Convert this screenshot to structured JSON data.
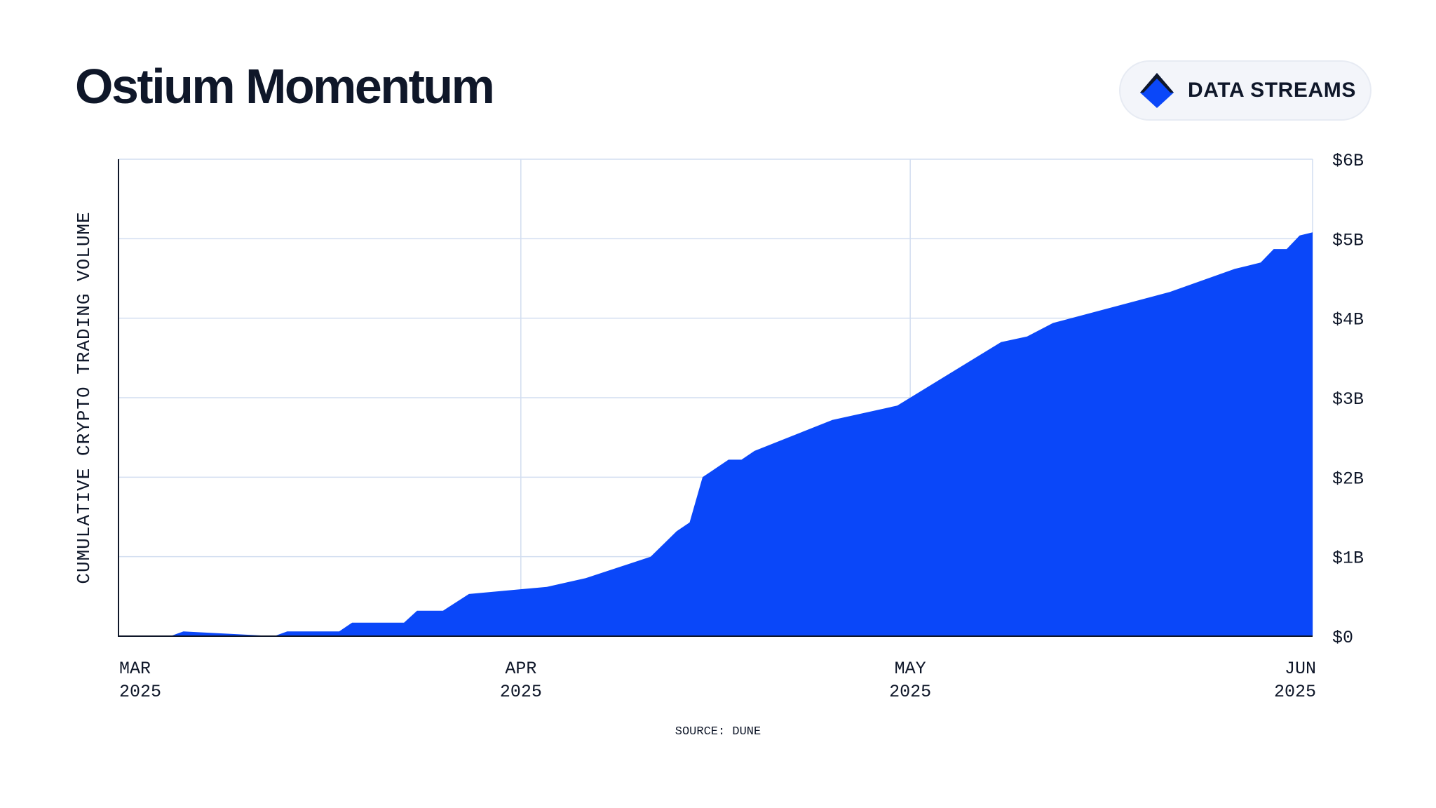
{
  "header": {
    "title": "Ostium Momentum",
    "brand_label": "DATA STREAMS",
    "brand_icon": "data-streams-logo-icon"
  },
  "footer": {
    "source": "SOURCE: DUNE"
  },
  "colors": {
    "fill": "#0a47f9",
    "grid": "#d2def0",
    "axis": "#0f1729",
    "text": "#0f1729"
  },
  "chart_data": {
    "type": "area",
    "title": "Ostium Momentum",
    "ylabel": "CUMULATIVE CRYPTO TRADING VOLUME",
    "xlabel": "",
    "y_unit": "billions USD",
    "ylim": [
      0,
      6
    ],
    "yticks": [
      0,
      1,
      2,
      3,
      4,
      5,
      6
    ],
    "ytick_labels": [
      "$0",
      "$1B",
      "$2B",
      "$3B",
      "$4B",
      "$5B",
      "$6B"
    ],
    "y_axis_side": "right",
    "xlim": [
      "2025-03-01",
      "2025-06-01"
    ],
    "xticks": [
      {
        "date": "2025-03-01",
        "label": [
          "MAR",
          "2025"
        ]
      },
      {
        "date": "2025-04-01",
        "label": [
          "APR",
          "2025"
        ]
      },
      {
        "date": "2025-05-01",
        "label": [
          "MAY",
          "2025"
        ]
      },
      {
        "date": "2025-06-01",
        "label": [
          "JUN",
          "2025"
        ]
      }
    ],
    "grid": true,
    "x": [
      "2025-03-01",
      "2025-03-05",
      "2025-03-06",
      "2025-03-13",
      "2025-03-14",
      "2025-03-18",
      "2025-03-19",
      "2025-03-23",
      "2025-03-24",
      "2025-03-26",
      "2025-03-28",
      "2025-04-03",
      "2025-04-06",
      "2025-04-11",
      "2025-04-13",
      "2025-04-14",
      "2025-04-15",
      "2025-04-17",
      "2025-04-18",
      "2025-04-19",
      "2025-04-25",
      "2025-04-30",
      "2025-05-08",
      "2025-05-10",
      "2025-05-12",
      "2025-05-21",
      "2025-05-26",
      "2025-05-28",
      "2025-05-29",
      "2025-05-30",
      "2025-05-31",
      "2025-06-01"
    ],
    "series": [
      {
        "values": [
          0,
          0,
          0.06,
          0.0,
          0.06,
          0.06,
          0.17,
          0.17,
          0.32,
          0.32,
          0.53,
          0.62,
          0.73,
          1.0,
          1.32,
          1.43,
          2.0,
          2.22,
          2.22,
          2.33,
          2.72,
          2.9,
          3.7,
          3.77,
          3.94,
          4.33,
          4.62,
          4.7,
          4.87,
          4.87,
          5.04,
          5.08
        ]
      }
    ]
  }
}
